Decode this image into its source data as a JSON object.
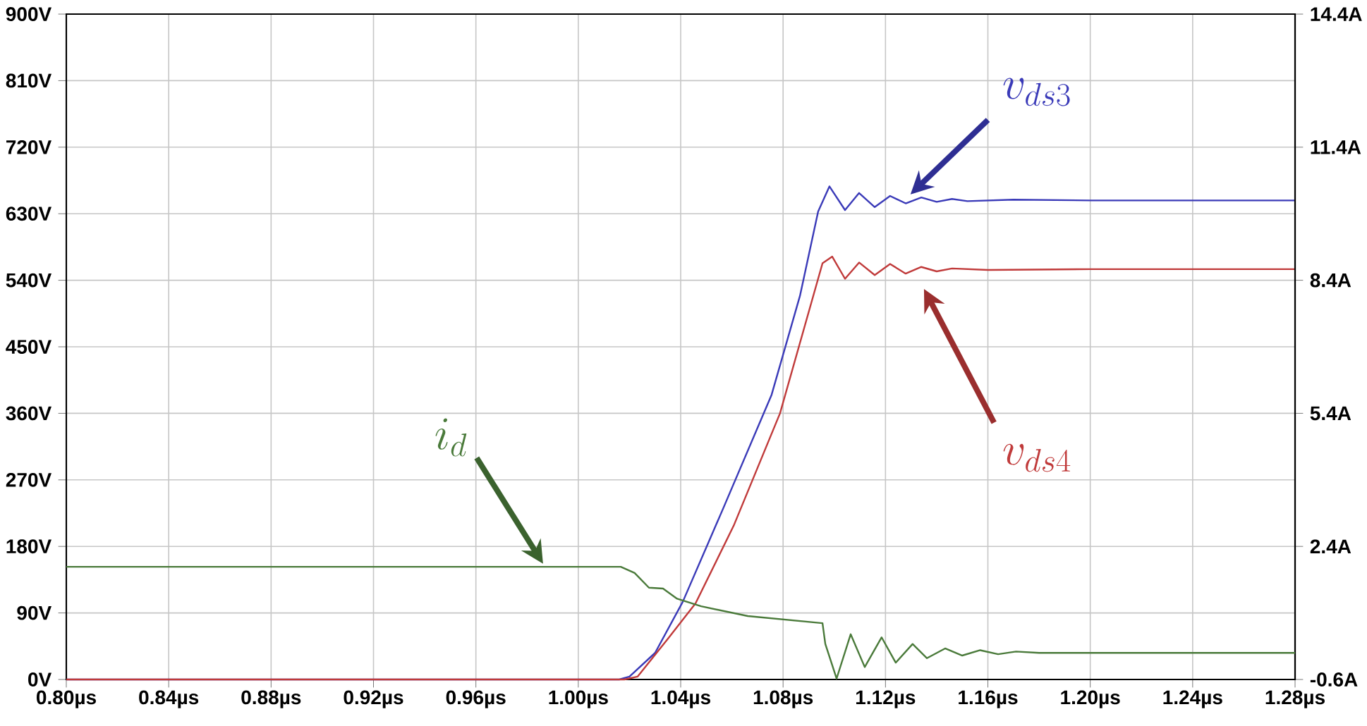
{
  "chart_data": {
    "type": "line",
    "xlim": [
      0.8,
      1.28
    ],
    "xticks": [
      {
        "value": 0.8,
        "label": "0.80µs"
      },
      {
        "value": 0.84,
        "label": "0.84µs"
      },
      {
        "value": 0.88,
        "label": "0.88µs"
      },
      {
        "value": 0.92,
        "label": "0.92µs"
      },
      {
        "value": 0.96,
        "label": "0.96µs"
      },
      {
        "value": 1.0,
        "label": "1.00µs"
      },
      {
        "value": 1.04,
        "label": "1.04µs"
      },
      {
        "value": 1.08,
        "label": "1.08µs"
      },
      {
        "value": 1.12,
        "label": "1.12µs"
      },
      {
        "value": 1.16,
        "label": "1.16µs"
      },
      {
        "value": 1.2,
        "label": "1.20µs"
      },
      {
        "value": 1.24,
        "label": "1.24µs"
      },
      {
        "value": 1.28,
        "label": "1.28µs"
      }
    ],
    "ylim": [
      0,
      900
    ],
    "yticks": [
      {
        "value": 0,
        "label": "0V"
      },
      {
        "value": 90,
        "label": "90V"
      },
      {
        "value": 180,
        "label": "180V"
      },
      {
        "value": 270,
        "label": "270V"
      },
      {
        "value": 360,
        "label": "360V"
      },
      {
        "value": 450,
        "label": "450V"
      },
      {
        "value": 540,
        "label": "540V"
      },
      {
        "value": 630,
        "label": "630V"
      },
      {
        "value": 720,
        "label": "720V"
      },
      {
        "value": 810,
        "label": "810V"
      },
      {
        "value": 900,
        "label": "900V"
      }
    ],
    "y2lim": [
      -0.6,
      14.4
    ],
    "y2ticks": [
      {
        "value": -0.6,
        "label": "-0.6A"
      },
      {
        "value": 2.4,
        "label": "2.4A"
      },
      {
        "value": 5.4,
        "label": "5.4A"
      },
      {
        "value": 8.4,
        "label": "8.4A"
      },
      {
        "value": 11.4,
        "label": "11.4A"
      },
      {
        "value": 14.4,
        "label": "14.4A"
      }
    ],
    "grid": true,
    "series": [
      {
        "color": "#3a3ab8",
        "x": [
          0.8,
          1.016,
          1.02,
          1.03,
          1.0408,
          1.0568,
          1.0755,
          1.0866,
          1.0937,
          1.0981,
          1.1042,
          1.1097,
          1.1158,
          1.1218,
          1.1279,
          1.134,
          1.14,
          1.146,
          1.152,
          1.17,
          1.2,
          1.28
        ],
        "values": [
          0,
          0,
          4,
          36,
          105,
          233,
          385,
          519,
          633,
          667,
          635,
          658,
          639,
          654,
          644,
          652,
          646,
          650,
          647,
          649,
          648,
          648
        ]
      },
      {
        "color": "#c03a3a",
        "x": [
          0.8,
          1.018,
          1.0232,
          1.035,
          1.0458,
          1.0607,
          1.0788,
          1.0954,
          1.0992,
          1.1042,
          1.1097,
          1.1158,
          1.1218,
          1.1279,
          1.134,
          1.14,
          1.146,
          1.16,
          1.2,
          1.28
        ],
        "values": [
          0,
          0,
          4,
          55,
          103,
          208,
          360,
          563,
          572,
          542,
          564,
          547,
          562,
          549,
          558,
          552,
          556,
          554,
          555,
          555
        ]
      },
      {
        "color": "#4a7a3a",
        "axis": "y2",
        "x": [
          0.8,
          1.0166,
          1.022,
          1.0276,
          1.0331,
          1.0386,
          1.048,
          1.0662,
          1.0954,
          1.0965,
          1.1009,
          1.1064,
          1.1119,
          1.1185,
          1.124,
          1.1306,
          1.1362,
          1.1433,
          1.15,
          1.157,
          1.164,
          1.171,
          1.18,
          1.28
        ],
        "values": [
          1.94,
          1.94,
          1.8,
          1.47,
          1.45,
          1.22,
          1.05,
          0.83,
          0.67,
          0.2,
          -0.58,
          0.42,
          -0.32,
          0.35,
          -0.22,
          0.2,
          -0.12,
          0.1,
          -0.06,
          0.06,
          -0.03,
          0.03,
          0.0,
          0.0
        ]
      }
    ],
    "annotations": [
      "v_{ds3}",
      "v_{ds4}",
      "i_d"
    ]
  }
}
